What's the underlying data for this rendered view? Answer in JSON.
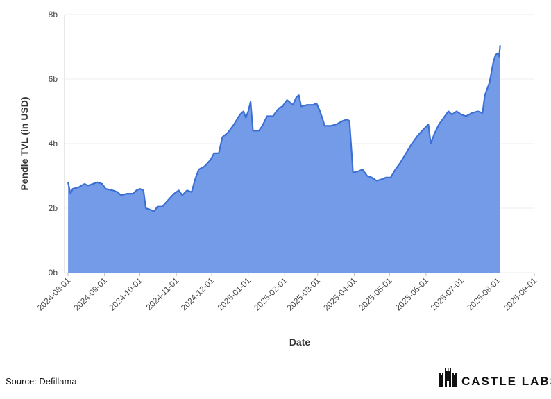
{
  "chart_data": {
    "type": "area",
    "x_label": "Date",
    "y_label": "Pendle TVL (in USD)",
    "x": [
      "2024-08-01",
      "2024-08-03",
      "2024-08-05",
      "2024-08-10",
      "2024-08-15",
      "2024-08-18",
      "2024-08-22",
      "2024-08-26",
      "2024-08-30",
      "2024-09-02",
      "2024-09-08",
      "2024-09-12",
      "2024-09-15",
      "2024-09-20",
      "2024-09-25",
      "2024-09-28",
      "2024-10-01",
      "2024-10-04",
      "2024-10-06",
      "2024-10-10",
      "2024-10-13",
      "2024-10-16",
      "2024-10-20",
      "2024-10-25",
      "2024-10-30",
      "2024-11-03",
      "2024-11-06",
      "2024-11-10",
      "2024-11-14",
      "2024-11-17",
      "2024-11-20",
      "2024-11-25",
      "2024-11-30",
      "2024-12-03",
      "2024-12-07",
      "2024-12-10",
      "2024-12-15",
      "2024-12-20",
      "2024-12-25",
      "2024-12-28",
      "2024-12-30",
      "2025-01-01",
      "2025-01-03",
      "2025-01-05",
      "2025-01-10",
      "2025-01-13",
      "2025-01-17",
      "2025-01-22",
      "2025-01-27",
      "2025-01-30",
      "2025-02-03",
      "2025-02-08",
      "2025-02-11",
      "2025-02-13",
      "2025-02-15",
      "2025-02-20",
      "2025-02-25",
      "2025-02-28",
      "2025-03-03",
      "2025-03-07",
      "2025-03-12",
      "2025-03-17",
      "2025-03-22",
      "2025-03-26",
      "2025-03-28",
      "2025-03-31",
      "2025-04-05",
      "2025-04-08",
      "2025-04-12",
      "2025-04-16",
      "2025-04-20",
      "2025-04-25",
      "2025-04-28",
      "2025-05-02",
      "2025-05-06",
      "2025-05-10",
      "2025-05-15",
      "2025-05-20",
      "2025-05-25",
      "2025-05-30",
      "2025-06-03",
      "2025-06-05",
      "2025-06-08",
      "2025-06-12",
      "2025-06-16",
      "2025-06-20",
      "2025-06-23",
      "2025-06-27",
      "2025-07-01",
      "2025-07-05",
      "2025-07-10",
      "2025-07-15",
      "2025-07-19",
      "2025-07-21",
      "2025-07-25",
      "2025-07-28",
      "2025-07-30",
      "2025-08-01",
      "2025-08-02",
      "2025-08-03"
    ],
    "series": [
      {
        "name": "Pendle TVL",
        "color": "#3b6fd4",
        "fill_color": "#739be8",
        "values": [
          2.8,
          2.45,
          2.6,
          2.65,
          2.75,
          2.7,
          2.75,
          2.8,
          2.75,
          2.6,
          2.55,
          2.5,
          2.4,
          2.45,
          2.45,
          2.55,
          2.6,
          2.55,
          2.0,
          1.95,
          1.9,
          2.05,
          2.05,
          2.25,
          2.45,
          2.55,
          2.4,
          2.55,
          2.5,
          2.9,
          3.2,
          3.3,
          3.5,
          3.7,
          3.7,
          4.2,
          4.35,
          4.6,
          4.9,
          5.0,
          4.8,
          5.0,
          5.3,
          4.4,
          4.4,
          4.55,
          4.85,
          4.85,
          5.1,
          5.15,
          5.35,
          5.2,
          5.45,
          5.5,
          5.15,
          5.2,
          5.2,
          5.25,
          5.0,
          4.55,
          4.55,
          4.6,
          4.7,
          4.75,
          4.7,
          3.1,
          3.15,
          3.2,
          3.0,
          2.95,
          2.85,
          2.9,
          2.95,
          2.95,
          3.2,
          3.4,
          3.7,
          4.0,
          4.25,
          4.45,
          4.6,
          4.0,
          4.3,
          4.6,
          4.8,
          5.0,
          4.9,
          5.0,
          4.9,
          4.85,
          4.95,
          5.0,
          4.95,
          5.5,
          5.9,
          6.5,
          6.75,
          6.8,
          6.7,
          7.05
        ]
      }
    ],
    "xlim": [
      "2024-07-29",
      "2025-09-01"
    ],
    "xticks": [
      "2024-08-01",
      "2024-09-01",
      "2024-10-01",
      "2024-11-01",
      "2024-12-01",
      "2025-01-01",
      "2025-02-01",
      "2025-03-01",
      "2025-04-01",
      "2025-05-01",
      "2025-06-01",
      "2025-07-01",
      "2025-08-01",
      "2025-09-01"
    ],
    "ylim": [
      0,
      8
    ],
    "yticks": [
      {
        "value": 0,
        "label": "0b"
      },
      {
        "value": 2,
        "label": "2b"
      },
      {
        "value": 4,
        "label": "4b"
      },
      {
        "value": 6,
        "label": "6b"
      },
      {
        "value": 8,
        "label": "8b"
      }
    ],
    "grid": true
  },
  "footer": {
    "source": "Source: Defillama",
    "brand": "CASTLE LABS"
  }
}
